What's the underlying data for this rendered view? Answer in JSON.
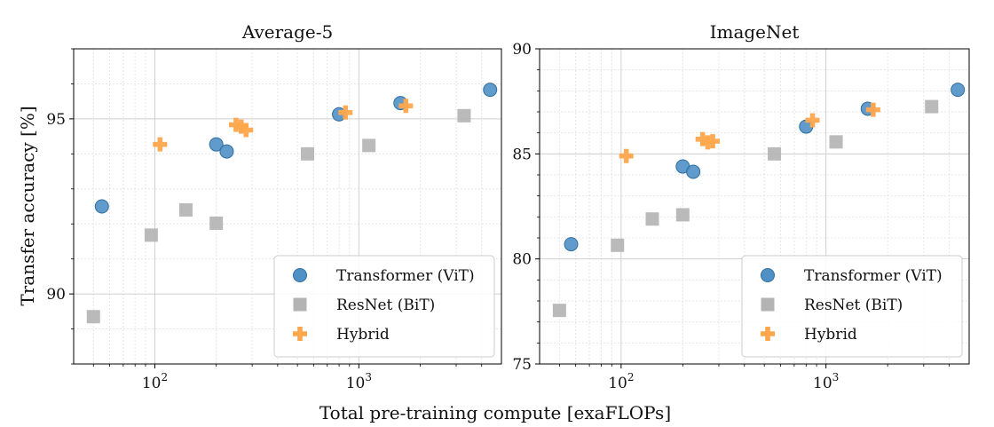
{
  "figure": {
    "shared_xlabel": "Total pre-training compute [exaFLOPs]",
    "shared_ylabel": "Transfer accuracy [%]"
  },
  "colors": {
    "Transformer (ViT)": "#4f90c5",
    "ResNet (BiT)": "#b3b3b3",
    "Hybrid": "#ffa64d"
  },
  "chart_data": [
    {
      "type": "scatter",
      "title": "Average-5",
      "xlabel": "Total pre-training compute [exaFLOPs]",
      "ylabel": "Transfer accuracy [%]",
      "xscale": "log",
      "xlim": [
        40,
        5000
      ],
      "ylim": [
        88,
        97
      ],
      "yticks": [
        90,
        95
      ],
      "xticks": [
        100,
        1000
      ],
      "xtick_labels": [
        {
          "base": "10",
          "exp": "2"
        },
        {
          "base": "10",
          "exp": "3"
        }
      ],
      "grid": true,
      "legend_position": "lower-right",
      "series": [
        {
          "name": "Transformer (ViT)",
          "marker": "circle",
          "points": [
            [
              55,
              92.5
            ],
            [
              200,
              94.27
            ],
            [
              225,
              94.07
            ],
            [
              800,
              95.13
            ],
            [
              1600,
              95.45
            ],
            [
              4400,
              95.83
            ]
          ]
        },
        {
          "name": "ResNet (BiT)",
          "marker": "square",
          "points": [
            [
              50,
              89.35
            ],
            [
              96,
              91.68
            ],
            [
              142,
              92.4
            ],
            [
              200,
              92.02
            ],
            [
              560,
              94.0
            ],
            [
              1120,
              94.24
            ],
            [
              3280,
              95.09
            ]
          ]
        },
        {
          "name": "Hybrid",
          "marker": "plus",
          "points": [
            [
              106,
              94.27
            ],
            [
              250,
              94.83
            ],
            [
              265,
              94.78
            ],
            [
              280,
              94.68
            ],
            [
              860,
              95.18
            ],
            [
              1700,
              95.37
            ]
          ]
        }
      ]
    },
    {
      "type": "scatter",
      "title": "ImageNet",
      "xlabel": "Total pre-training compute [exaFLOPs]",
      "ylabel": "",
      "xscale": "log",
      "xlim": [
        40,
        5000
      ],
      "ylim": [
        75,
        90
      ],
      "yticks": [
        75,
        80,
        85,
        90
      ],
      "xticks": [
        100,
        1000
      ],
      "xtick_labels": [
        {
          "base": "10",
          "exp": "2"
        },
        {
          "base": "10",
          "exp": "3"
        }
      ],
      "grid": true,
      "legend_position": "lower-right",
      "series": [
        {
          "name": "Transformer (ViT)",
          "marker": "circle",
          "points": [
            [
              57,
              80.7
            ],
            [
              200,
              84.4
            ],
            [
              225,
              84.15
            ],
            [
              800,
              86.3
            ],
            [
              1600,
              87.15
            ],
            [
              4400,
              88.05
            ]
          ]
        },
        {
          "name": "ResNet (BiT)",
          "marker": "square",
          "points": [
            [
              50,
              77.55
            ],
            [
              96,
              80.65
            ],
            [
              142,
              81.9
            ],
            [
              200,
              82.1
            ],
            [
              560,
              85.0
            ],
            [
              1120,
              85.57
            ],
            [
              3280,
              87.25
            ]
          ]
        },
        {
          "name": "Hybrid",
          "marker": "plus",
          "points": [
            [
              106,
              84.9
            ],
            [
              250,
              85.7
            ],
            [
              265,
              85.55
            ],
            [
              280,
              85.6
            ],
            [
              860,
              86.6
            ],
            [
              1700,
              87.1
            ]
          ]
        }
      ]
    }
  ]
}
